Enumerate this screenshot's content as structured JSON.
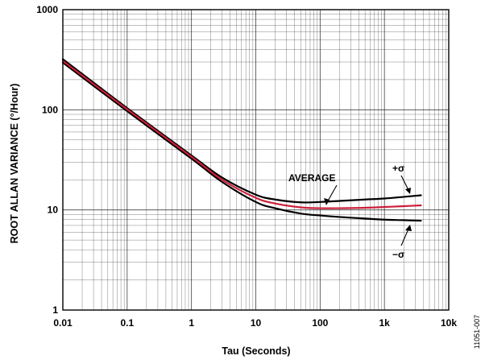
{
  "chart_data": {
    "type": "line",
    "title": "",
    "xlabel": "Tau (Seconds)",
    "ylabel": "ROOT ALLAN VARIANCE (°/Hour)",
    "x_scale": "log",
    "y_scale": "log",
    "xlim": [
      0.01,
      10000
    ],
    "ylim": [
      1,
      1000
    ],
    "x_tick_labels": [
      "0.01",
      "0.1",
      "1",
      "10",
      "100",
      "1k",
      "10k"
    ],
    "y_tick_labels": [
      "1",
      "10",
      "100",
      "1000"
    ],
    "grid": true,
    "figure_id": "11051-007",
    "series": [
      {
        "name": "+σ",
        "color": "#000000",
        "x": [
          0.01,
          0.1,
          1,
          3,
          10,
          20,
          50,
          100,
          200,
          500,
          1000,
          2000,
          3700
        ],
        "y": [
          320,
          104,
          35,
          21,
          14.2,
          12.7,
          11.9,
          12.0,
          12.3,
          12.7,
          13.0,
          13.5,
          14.0
        ]
      },
      {
        "name": "AVERAGE",
        "color": "#cc1f3a",
        "x": [
          0.01,
          0.1,
          1,
          3,
          10,
          20,
          50,
          100,
          200,
          500,
          1000,
          2000,
          3700
        ],
        "y": [
          308,
          101,
          34,
          20,
          13.2,
          11.6,
          10.6,
          10.4,
          10.4,
          10.5,
          10.7,
          10.9,
          11.1
        ]
      },
      {
        "name": "−σ",
        "color": "#000000",
        "x": [
          0.01,
          0.1,
          1,
          3,
          10,
          20,
          50,
          100,
          200,
          500,
          1000,
          2000,
          3700
        ],
        "y": [
          296,
          97,
          32.5,
          19,
          12.0,
          10.4,
          9.2,
          8.8,
          8.5,
          8.2,
          8.0,
          7.9,
          7.8
        ]
      }
    ],
    "annotations": [
      {
        "text": "AVERAGE",
        "points_to": "AVERAGE"
      },
      {
        "text": "+σ",
        "points_to": "+σ"
      },
      {
        "text": "−σ",
        "points_to": "−σ"
      }
    ]
  }
}
